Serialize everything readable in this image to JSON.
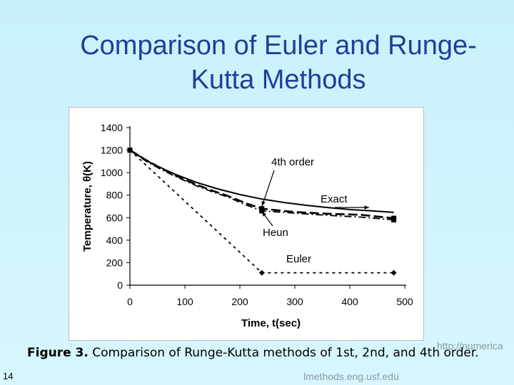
{
  "slide": {
    "title_line1": "Comparison of Euler and Runge-",
    "title_line2": "Kutta Methods",
    "caption_label": "Figure 3.",
    "caption_text": " Comparison of Runge-Kutta methods of 1st, 2nd, and 4th order.",
    "slide_number": "14",
    "footer_url_part1": "http://numerica",
    "footer_url_part2": "lmethods.eng.usf.edu"
  },
  "chart_data": {
    "type": "line",
    "title": "",
    "xlabel": "Time, t(sec)",
    "ylabel": "Temperature, θ(K)",
    "xlim": [
      0,
      500
    ],
    "ylim": [
      0,
      1400
    ],
    "xticks": [
      "0",
      "100",
      "200",
      "300",
      "400",
      "500"
    ],
    "yticks": [
      "0",
      "200",
      "400",
      "600",
      "800",
      "1000",
      "1200",
      "1400"
    ],
    "grid": false,
    "series": [
      {
        "name": "Exact",
        "style": "solid",
        "color": "#000000",
        "x": [
          0,
          40,
          80,
          120,
          160,
          200,
          240,
          280,
          320,
          360,
          400,
          440,
          480
        ],
        "y": [
          1200,
          1080,
          990,
          915,
          855,
          805,
          765,
          735,
          710,
          690,
          672,
          660,
          647
        ]
      },
      {
        "name": "4th order",
        "style": "long-dash",
        "color": "#000000",
        "marker": "square",
        "x": [
          0,
          30,
          60,
          90,
          120,
          150,
          180,
          210,
          240,
          300,
          360,
          420,
          480
        ],
        "y": [
          1200,
          1110,
          1030,
          960,
          895,
          840,
          790,
          730,
          680,
          650,
          635,
          625,
          595
        ]
      },
      {
        "name": "Heun",
        "style": "dash-dot",
        "color": "#000000",
        "marker": "square",
        "x": [
          0,
          30,
          60,
          90,
          120,
          150,
          180,
          210,
          240,
          300,
          360,
          420,
          480
        ],
        "y": [
          1200,
          1100,
          1020,
          950,
          885,
          830,
          780,
          715,
          660,
          640,
          620,
          605,
          580
        ]
      },
      {
        "name": "Euler",
        "style": "short-dash",
        "color": "#000000",
        "marker": "diamond",
        "x": [
          0,
          240,
          480
        ],
        "y": [
          1200,
          110,
          110
        ]
      }
    ],
    "annotations": [
      "4th order",
      "Exact",
      "Heun",
      "Euler"
    ],
    "colors": {
      "title": "#1f3f99",
      "background": "#c9f1fb",
      "footer": "#8a9aa0"
    }
  }
}
